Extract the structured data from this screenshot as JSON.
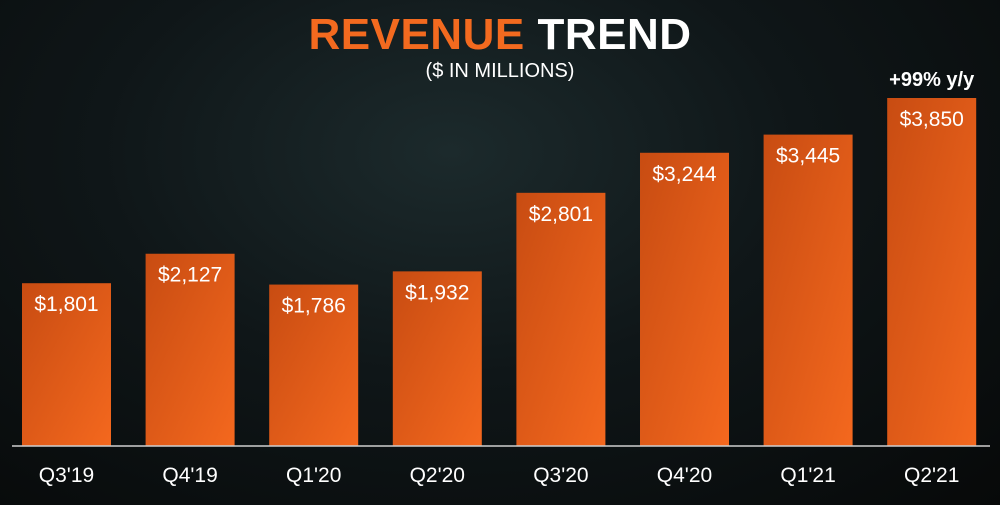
{
  "header": {
    "title_part1": "REVENUE",
    "title_part2": "TREND",
    "subtitle": "($ IN MILLIONS)"
  },
  "chart_data": {
    "type": "bar",
    "title": "REVENUE TREND",
    "subtitle": "($ IN MILLIONS)",
    "categories": [
      "Q3'19",
      "Q4'19",
      "Q1'20",
      "Q2'20",
      "Q3'20",
      "Q4'20",
      "Q1'21",
      "Q2'21"
    ],
    "values": [
      1801,
      2127,
      1786,
      1932,
      2801,
      3244,
      3445,
      3850
    ],
    "data_labels": [
      "$1,801",
      "$2,127",
      "$1,786",
      "$1,932",
      "$2,801",
      "$3,244",
      "$3,445",
      "$3,850"
    ],
    "annotation": {
      "category": "Q2'21",
      "text": "+99% y/y"
    },
    "ylim": [
      0,
      3850
    ],
    "xlabel": "",
    "ylabel": "",
    "grid": false,
    "colors": {
      "bar_top": "#e35a16",
      "bar_bottom": "#b9450f",
      "bar_accent": "#f4681e",
      "axis": "#cfcfcf"
    }
  }
}
